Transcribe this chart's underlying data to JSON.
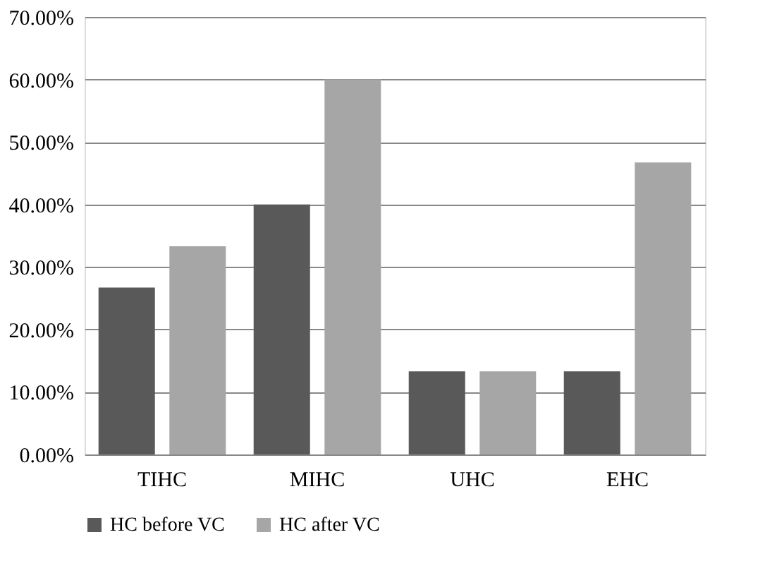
{
  "chart_data": {
    "type": "bar",
    "categories": [
      "TIHC",
      "MIHC",
      "UHC",
      "EHC"
    ],
    "series": [
      {
        "name": "HC before VC",
        "color": "#595959",
        "values": [
          26.7,
          40,
          13.3,
          13.3
        ]
      },
      {
        "name": "HC after VC",
        "color": "#a6a6a6",
        "values": [
          33.3,
          60,
          13.3,
          46.7
        ]
      }
    ],
    "ylim": [
      0,
      70
    ],
    "yticks": [
      {
        "value": 0,
        "label": "0.00%"
      },
      {
        "value": 10,
        "label": "10.00%"
      },
      {
        "value": 20,
        "label": "20.00%"
      },
      {
        "value": 30,
        "label": "30.00%"
      },
      {
        "value": 40,
        "label": "40.00%"
      },
      {
        "value": 50,
        "label": "50.00%"
      },
      {
        "value": 60,
        "label": "60.00%"
      },
      {
        "value": 70,
        "label": "70.00%"
      }
    ],
    "grid": "y",
    "legend": "bottom"
  }
}
